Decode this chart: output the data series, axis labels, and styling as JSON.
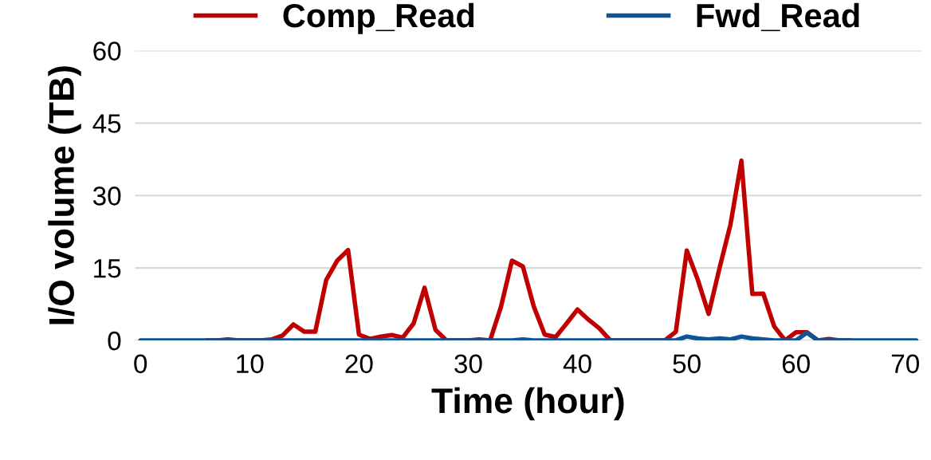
{
  "chart_data": {
    "type": "line",
    "xlabel": "Time (hour)",
    "ylabel": "I/O volume (TB)",
    "x": [
      0,
      1,
      2,
      3,
      4,
      5,
      6,
      7,
      8,
      9,
      10,
      11,
      12,
      13,
      14,
      15,
      16,
      17,
      18,
      19,
      20,
      21,
      22,
      23,
      24,
      25,
      26,
      27,
      28,
      29,
      30,
      31,
      32,
      33,
      34,
      35,
      36,
      37,
      38,
      39,
      40,
      41,
      42,
      43,
      44,
      45,
      46,
      47,
      48,
      49,
      50,
      51,
      52,
      53,
      54,
      55,
      56,
      57,
      58,
      59,
      60,
      61,
      62,
      63,
      64,
      65,
      66,
      67,
      68,
      69,
      70,
      71
    ],
    "series": [
      {
        "name": "Comp_Read",
        "color": "#c00000",
        "values": [
          null,
          null,
          null,
          null,
          null,
          null,
          0,
          0,
          0.2,
          0,
          0,
          0,
          0.2,
          1,
          3.3,
          1.8,
          1.8,
          12.5,
          16.5,
          18.7,
          1.2,
          0.3,
          0.8,
          1.1,
          0.6,
          3.5,
          10.9,
          2.2,
          0,
          0,
          0,
          0.2,
          0,
          7,
          16.5,
          15.3,
          7,
          1.2,
          0.7,
          3.5,
          6.4,
          4.3,
          2.5,
          0,
          0,
          0,
          0,
          0,
          0,
          1.8,
          18.6,
          12.6,
          5.5,
          15,
          24,
          37.2,
          9.6,
          9.7,
          2.9,
          0,
          1.7,
          1.7,
          0,
          0.3,
          0,
          0,
          null,
          null,
          null,
          null,
          null,
          null
        ]
      },
      {
        "name": "Fwd_Read",
        "color": "#0f5496",
        "values": [
          0,
          0,
          0,
          0,
          0,
          0,
          0,
          0,
          0,
          0,
          0,
          0,
          0,
          0,
          0,
          0,
          0,
          0,
          0,
          0,
          0,
          0,
          0,
          0,
          0,
          0,
          0,
          0,
          0,
          0,
          0,
          0,
          0,
          0,
          0,
          0.2,
          0,
          0,
          0,
          0,
          0,
          0,
          0,
          0,
          0,
          0,
          0,
          0,
          0,
          0,
          0.8,
          0.4,
          0.2,
          0.4,
          0.2,
          0.8,
          0.4,
          0.2,
          0,
          0,
          0,
          1.6,
          0,
          0,
          0,
          0,
          0,
          0,
          0,
          0,
          0,
          0
        ]
      }
    ],
    "xlim": [
      -0.5,
      71.5
    ],
    "xticks": [
      0,
      10,
      20,
      30,
      40,
      50,
      60,
      70
    ],
    "ylim": [
      0,
      60
    ],
    "yticks": [
      0,
      15,
      30,
      45,
      60
    ],
    "grid": "y",
    "legend": "top",
    "marker": "none",
    "line_style": "solid"
  }
}
